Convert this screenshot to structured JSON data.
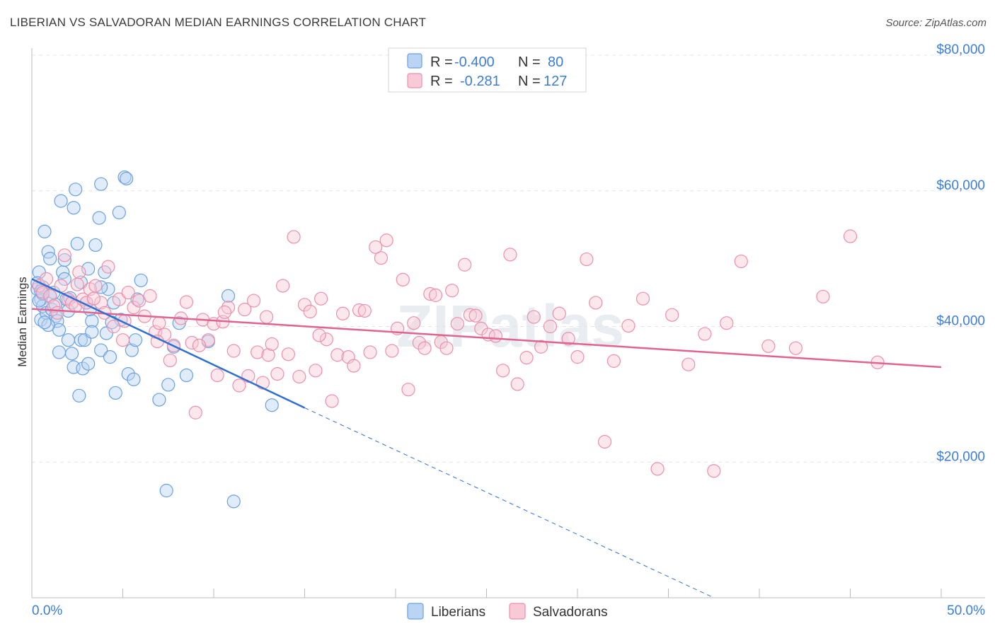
{
  "title": "LIBERIAN VS SALVADORAN MEDIAN EARNINGS CORRELATION CHART",
  "source": "Source: ZipAtlas.com",
  "watermark": "ZIPatlas",
  "colors": {
    "liberian": "#6aa0e0",
    "liberian_fill": "#bcd4f3",
    "liberian_line": "#2f6fd1",
    "salvadoran": "#ec8fab",
    "salvadoran_fill": "#f8c9d7",
    "salvadoran_line": "#e06490",
    "accent_text": "#3d7dd6"
  },
  "legend": {
    "r_label": "R =",
    "n_label": "N =",
    "rows": [
      {
        "r": "-0.400",
        "n": "80"
      },
      {
        "r": "-0.281",
        "n": "127"
      }
    ]
  },
  "bottom_legend": [
    "Liberians",
    "Salvadorans"
  ],
  "chart_data": {
    "type": "scatter",
    "title": "LIBERIAN VS SALVADORAN MEDIAN EARNINGS CORRELATION CHART",
    "xlabel": "",
    "ylabel": "Median Earnings",
    "xlim": [
      0,
      50
    ],
    "ylim": [
      0,
      80000
    ],
    "x_tick_labels": [
      "0.0%",
      "50.0%"
    ],
    "y_ticks": [
      20000,
      40000,
      60000,
      80000
    ],
    "y_tick_labels": [
      "$20,000",
      "$40,000",
      "$60,000",
      "$80,000"
    ],
    "series": [
      {
        "name": "Liberians",
        "trend": {
          "x0": 0,
          "y0": 47000,
          "x1": 15,
          "y1": 28000,
          "dash_to_x": 37.5,
          "dash_to_y": 0
        },
        "points": [
          [
            0.3,
            45500
          ],
          [
            0.4,
            48000
          ],
          [
            0.5,
            44000
          ],
          [
            0.6,
            43000
          ],
          [
            0.5,
            41000
          ],
          [
            0.7,
            54000
          ],
          [
            0.9,
            51000
          ],
          [
            1.0,
            50000
          ],
          [
            0.8,
            42000
          ],
          [
            1.0,
            44500
          ],
          [
            1.2,
            45000
          ],
          [
            1.3,
            41500
          ],
          [
            1.4,
            40800
          ],
          [
            1.5,
            39500
          ],
          [
            1.6,
            58500
          ],
          [
            1.7,
            48000
          ],
          [
            1.8,
            47000
          ],
          [
            1.9,
            44000
          ],
          [
            2.0,
            38000
          ],
          [
            2.2,
            36000
          ],
          [
            2.3,
            34000
          ],
          [
            2.3,
            57500
          ],
          [
            2.4,
            60200
          ],
          [
            2.5,
            52200
          ],
          [
            2.6,
            29800
          ],
          [
            2.7,
            38000
          ],
          [
            2.8,
            33800
          ],
          [
            2.9,
            38000
          ],
          [
            3.0,
            43500
          ],
          [
            3.1,
            48500
          ],
          [
            3.2,
            42500
          ],
          [
            3.3,
            40800
          ],
          [
            3.5,
            52000
          ],
          [
            3.7,
            56000
          ],
          [
            3.8,
            61000
          ],
          [
            3.8,
            36500
          ],
          [
            4.0,
            48000
          ],
          [
            4.1,
            39000
          ],
          [
            4.2,
            45500
          ],
          [
            4.3,
            35500
          ],
          [
            4.5,
            43500
          ],
          [
            4.6,
            30200
          ],
          [
            4.8,
            56800
          ],
          [
            4.9,
            41000
          ],
          [
            5.1,
            62000
          ],
          [
            5.2,
            61800
          ],
          [
            5.3,
            33000
          ],
          [
            5.5,
            36500
          ],
          [
            5.6,
            32200
          ],
          [
            6.0,
            46800
          ],
          [
            5.8,
            44000
          ],
          [
            7.0,
            29200
          ],
          [
            7.5,
            31400
          ],
          [
            7.8,
            37000
          ],
          [
            8.1,
            40500
          ],
          [
            8.5,
            32800
          ],
          [
            9.7,
            37800
          ],
          [
            10.8,
            44500
          ],
          [
            11.1,
            14200
          ],
          [
            13.2,
            28400
          ],
          [
            7.4,
            15800
          ],
          [
            0.9,
            40200
          ],
          [
            1.1,
            42500
          ],
          [
            0.6,
            44800
          ],
          [
            0.4,
            43800
          ],
          [
            1.5,
            36200
          ],
          [
            2.1,
            44200
          ],
          [
            3.3,
            39200
          ],
          [
            4.4,
            40600
          ],
          [
            5.7,
            38000
          ],
          [
            0.6,
            45800
          ],
          [
            0.7,
            40600
          ],
          [
            1.3,
            43200
          ],
          [
            2.0,
            42300
          ],
          [
            2.7,
            46500
          ],
          [
            3.1,
            34500
          ],
          [
            3.8,
            45800
          ],
          [
            0.3,
            46400
          ],
          [
            0.5,
            45200
          ],
          [
            1.8,
            49800
          ]
        ]
      },
      {
        "name": "Salvadorans",
        "trend": {
          "x0": 0,
          "y0": 42600,
          "x1": 50,
          "y1": 34000
        },
        "points": [
          [
            0.4,
            46000
          ],
          [
            0.6,
            45000
          ],
          [
            0.8,
            47000
          ],
          [
            1.0,
            44500
          ],
          [
            1.2,
            43000
          ],
          [
            1.4,
            42000
          ],
          [
            1.6,
            46000
          ],
          [
            1.8,
            50500
          ],
          [
            2.0,
            44000
          ],
          [
            2.2,
            43500
          ],
          [
            2.4,
            43000
          ],
          [
            2.6,
            48000
          ],
          [
            2.8,
            44000
          ],
          [
            3.0,
            43500
          ],
          [
            3.2,
            45500
          ],
          [
            3.5,
            46000
          ],
          [
            3.8,
            43500
          ],
          [
            4.0,
            42000
          ],
          [
            4.2,
            48800
          ],
          [
            4.5,
            40000
          ],
          [
            4.8,
            44000
          ],
          [
            5.0,
            38000
          ],
          [
            5.3,
            45000
          ],
          [
            5.6,
            42800
          ],
          [
            5.9,
            43800
          ],
          [
            6.2,
            41500
          ],
          [
            6.5,
            44500
          ],
          [
            6.8,
            39200
          ],
          [
            7.0,
            40500
          ],
          [
            7.3,
            38800
          ],
          [
            7.6,
            35000
          ],
          [
            7.8,
            37200
          ],
          [
            8.2,
            41200
          ],
          [
            8.5,
            43600
          ],
          [
            8.8,
            37600
          ],
          [
            9.0,
            27300
          ],
          [
            9.4,
            41000
          ],
          [
            9.7,
            38000
          ],
          [
            10.0,
            40400
          ],
          [
            10.2,
            32800
          ],
          [
            10.5,
            40700
          ],
          [
            10.8,
            42800
          ],
          [
            11.1,
            36400
          ],
          [
            11.4,
            31300
          ],
          [
            11.7,
            42500
          ],
          [
            11.9,
            32700
          ],
          [
            12.2,
            43800
          ],
          [
            12.4,
            36200
          ],
          [
            12.7,
            31700
          ],
          [
            13.0,
            35800
          ],
          [
            13.2,
            37400
          ],
          [
            13.5,
            33000
          ],
          [
            13.8,
            46000
          ],
          [
            14.1,
            35900
          ],
          [
            14.4,
            53200
          ],
          [
            14.7,
            32600
          ],
          [
            15.0,
            43200
          ],
          [
            15.3,
            42200
          ],
          [
            15.6,
            33500
          ],
          [
            15.9,
            44100
          ],
          [
            16.2,
            38100
          ],
          [
            16.5,
            29000
          ],
          [
            16.8,
            35800
          ],
          [
            17.1,
            41900
          ],
          [
            17.4,
            35500
          ],
          [
            17.7,
            34200
          ],
          [
            18.0,
            42400
          ],
          [
            18.3,
            42300
          ],
          [
            18.6,
            36200
          ],
          [
            18.9,
            51700
          ],
          [
            19.2,
            50100
          ],
          [
            19.5,
            52700
          ],
          [
            19.8,
            36400
          ],
          [
            20.1,
            39700
          ],
          [
            20.4,
            46900
          ],
          [
            20.7,
            30700
          ],
          [
            21.0,
            40500
          ],
          [
            21.3,
            37600
          ],
          [
            21.6,
            36800
          ],
          [
            21.9,
            44800
          ],
          [
            22.2,
            44600
          ],
          [
            22.5,
            37700
          ],
          [
            22.8,
            36800
          ],
          [
            23.1,
            45300
          ],
          [
            23.4,
            40400
          ],
          [
            23.8,
            49100
          ],
          [
            24.1,
            41700
          ],
          [
            24.4,
            41600
          ],
          [
            24.7,
            39700
          ],
          [
            25.1,
            38800
          ],
          [
            25.5,
            38600
          ],
          [
            25.9,
            33500
          ],
          [
            26.3,
            50600
          ],
          [
            26.7,
            31500
          ],
          [
            27.2,
            35400
          ],
          [
            27.6,
            41400
          ],
          [
            28.0,
            37000
          ],
          [
            28.5,
            40000
          ],
          [
            29.0,
            41900
          ],
          [
            29.5,
            38200
          ],
          [
            30.0,
            35500
          ],
          [
            30.5,
            49900
          ],
          [
            31.0,
            43500
          ],
          [
            31.5,
            23000
          ],
          [
            32.0,
            34900
          ],
          [
            32.8,
            40100
          ],
          [
            33.6,
            44100
          ],
          [
            34.4,
            19000
          ],
          [
            35.2,
            41700
          ],
          [
            36.1,
            34400
          ],
          [
            37.0,
            38900
          ],
          [
            37.5,
            18700
          ],
          [
            38.2,
            40500
          ],
          [
            39.0,
            49600
          ],
          [
            40.5,
            37100
          ],
          [
            42.0,
            36800
          ],
          [
            43.5,
            44400
          ],
          [
            45.0,
            53300
          ],
          [
            46.5,
            34700
          ],
          [
            2.5,
            46200
          ],
          [
            3.4,
            44100
          ],
          [
            5.1,
            40800
          ],
          [
            6.9,
            37800
          ],
          [
            10.6,
            42100
          ],
          [
            12.9,
            41400
          ],
          [
            15.8,
            38700
          ],
          [
            9.2,
            37200
          ]
        ]
      }
    ]
  }
}
